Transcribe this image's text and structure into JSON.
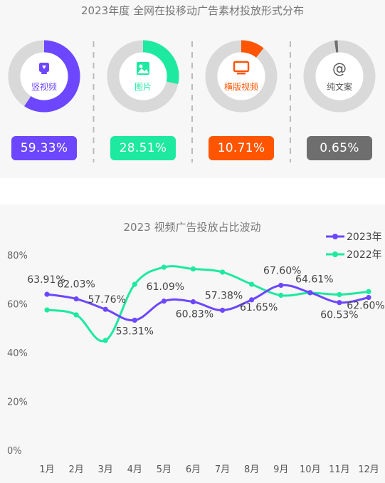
{
  "header": {
    "title": "2023年度 全网在投移动广告素材投放形式分布"
  },
  "formats": [
    {
      "label": "竖视频",
      "percent_text": "59.33%",
      "value": 59.33,
      "color": "#6c47ff",
      "icon": "phone-video-icon"
    },
    {
      "label": "图片",
      "percent_text": "28.51%",
      "value": 28.51,
      "color": "#1de9a0",
      "icon": "image-icon"
    },
    {
      "label": "横版视频",
      "percent_text": "10.71%",
      "value": 10.71,
      "color": "#ff5500",
      "icon": "monitor-icon"
    },
    {
      "label": "纯文案",
      "percent_text": "0.65%",
      "value": 0.65,
      "color": "#6e6e6e",
      "icon": "at-sign-icon"
    }
  ],
  "chart_data": {
    "type": "line",
    "title": "2023 视频广告投放占比波动",
    "categories": [
      "1月",
      "2月",
      "3月",
      "4月",
      "5月",
      "6月",
      "7月",
      "8月",
      "9月",
      "10月",
      "11月",
      "12月"
    ],
    "y_ticks": [
      "0%",
      "20%",
      "40%",
      "60%",
      "80%"
    ],
    "ylim": [
      0,
      80
    ],
    "legend_position": "top-right",
    "series": [
      {
        "name": "2023年",
        "color": "#6c47ff",
        "values": [
          63.91,
          62.03,
          57.76,
          53.31,
          61.09,
          60.83,
          57.38,
          61.65,
          67.6,
          64.61,
          60.53,
          62.6
        ],
        "labels": [
          "63.91%",
          "62.03%",
          "57.76%",
          "53.31%",
          "61.09%",
          "60.83%",
          "57.38%",
          "61.65%",
          "67.60%",
          "64.61%",
          "60.53%",
          "62.60%"
        ]
      },
      {
        "name": "2022年",
        "color": "#1de9a0",
        "values": [
          57.5,
          55.5,
          45.0,
          68.0,
          75.0,
          74.3,
          73.0,
          68.0,
          63.5,
          64.5,
          63.8,
          65.0
        ]
      }
    ]
  }
}
